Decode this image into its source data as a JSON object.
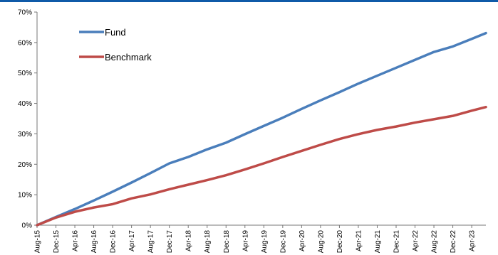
{
  "top_bar_color": "#0f5aa8",
  "chart_data": {
    "type": "line",
    "title": "",
    "xlabel": "",
    "ylabel": "",
    "y_format": "percent",
    "ylim": [
      0,
      70
    ],
    "yticks": [
      0,
      10,
      20,
      30,
      40,
      50,
      60,
      70
    ],
    "ytick_labels": [
      "0%",
      "10%",
      "20%",
      "30%",
      "40%",
      "50%",
      "60%",
      "70%"
    ],
    "x_start": "Aug-15",
    "x_end": "Jul-23",
    "xtick_labels": [
      "Aug-15",
      "Dec-15",
      "Apr-16",
      "Aug-16",
      "Dec-16",
      "Apr-17",
      "Aug-17",
      "Dec-17",
      "Apr-18",
      "Aug-18",
      "Dec-18",
      "Apr-19",
      "Aug-19",
      "Dec-19",
      "Apr-20",
      "Aug-20",
      "Dec-20",
      "Apr-21",
      "Aug-21",
      "Dec-21",
      "Apr-22",
      "Aug-22",
      "Dec-22",
      "Apr-23"
    ],
    "x": [
      "Aug-15",
      "Dec-15",
      "Apr-16",
      "Aug-16",
      "Dec-16",
      "Apr-17",
      "Aug-17",
      "Dec-17",
      "Apr-18",
      "Aug-18",
      "Dec-18",
      "Apr-19",
      "Aug-19",
      "Dec-19",
      "Apr-20",
      "Aug-20",
      "Dec-20",
      "Apr-21",
      "Aug-21",
      "Dec-21",
      "Apr-22",
      "Aug-22",
      "Dec-22",
      "Apr-23",
      "Jul-23"
    ],
    "grid": false,
    "legend_position": "top-left",
    "series": [
      {
        "name": "Fund",
        "color": "#4a7ebb",
        "values": [
          0.0,
          2.7,
          5.3,
          8.1,
          11.0,
          14.0,
          17.1,
          20.3,
          22.4,
          24.9,
          27.1,
          29.9,
          32.6,
          35.3,
          38.2,
          41.0,
          43.7,
          46.5,
          49.1,
          51.7,
          54.3,
          56.9,
          58.7,
          61.2,
          63.1
        ]
      },
      {
        "name": "Benchmark",
        "color": "#be4b48",
        "values": [
          0.0,
          2.5,
          4.4,
          5.8,
          6.9,
          8.8,
          10.1,
          11.8,
          13.3,
          14.8,
          16.4,
          18.3,
          20.3,
          22.4,
          24.4,
          26.4,
          28.3,
          29.9,
          31.3,
          32.4,
          33.7,
          34.8,
          35.9,
          37.6,
          38.8
        ]
      }
    ]
  }
}
